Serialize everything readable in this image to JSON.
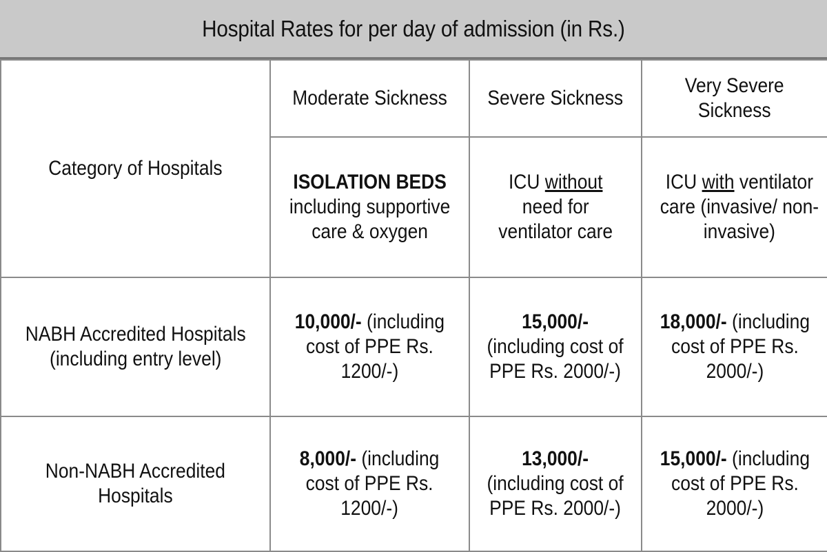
{
  "title": "Hospital Rates for per day of admission (in Rs.)",
  "header": {
    "category_label": "Category of Hospitals",
    "moderate_label": "Moderate Sickness",
    "severe_label": "Severe Sickness",
    "very_severe_label_line1": "Very Severe",
    "very_severe_label_line2": "Sickness",
    "moderate_care_title": "ISOLATION BEDS",
    "moderate_care_line2": "including supportive",
    "moderate_care_line3": "care & oxygen",
    "severe_care_word1": "ICU",
    "severe_care_word2": "without",
    "severe_care_line2": "need for",
    "severe_care_line3": "ventilator care",
    "vsevere_care_word1": "ICU",
    "vsevere_care_word2": "with",
    "vsevere_care_word3": "ventilator",
    "vsevere_care_line2": "care (invasive/ non-",
    "vsevere_care_line3": "invasive)"
  },
  "rows": [
    {
      "category_line1": "NABH Accredited Hospitals",
      "category_line2": "(including entry level)",
      "moderate_amount": "10,000/-",
      "moderate_rest1": "(including",
      "moderate_rest2": "cost of PPE Rs.",
      "moderate_rest3": "1200/-)",
      "severe_amount": "15,000/-",
      "severe_rest1": "(including cost of",
      "severe_rest2": "PPE Rs. 2000/-)",
      "vsevere_amount": "18,000/-",
      "vsevere_rest1": "(including",
      "vsevere_rest2": "cost of PPE Rs.",
      "vsevere_rest3": "2000/-)"
    },
    {
      "category_line1": "Non-NABH Accredited",
      "category_line2": "Hospitals",
      "moderate_amount": "8,000/-",
      "moderate_rest1": "(including",
      "moderate_rest2": "cost of PPE Rs.",
      "moderate_rest3": "1200/-)",
      "severe_amount": "13,000/-",
      "severe_rest1": "(including cost of",
      "severe_rest2": "PPE Rs. 2000/-)",
      "vsevere_amount": "15,000/-",
      "vsevere_rest1": "(including",
      "vsevere_rest2": "cost of PPE Rs.",
      "vsevere_rest3": "2000/-)"
    }
  ]
}
